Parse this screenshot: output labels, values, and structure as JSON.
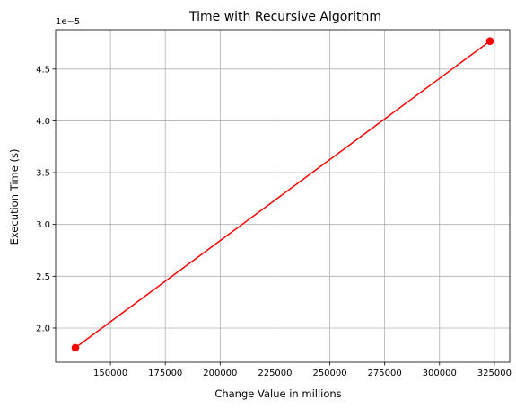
{
  "chart_data": {
    "type": "line",
    "title": "Time with Recursive Algorithm",
    "xlabel": "Change Value in millions",
    "ylabel": "Execution Time (s)",
    "y_offset_label": "1e−5",
    "xlim": [
      125000,
      332000
    ],
    "ylim": [
      1.67,
      4.88
    ],
    "xticks": [
      150000,
      175000,
      200000,
      225000,
      250000,
      275000,
      300000,
      325000
    ],
    "xtick_labels": [
      "150000",
      "175000",
      "200000",
      "225000",
      "250000",
      "275000",
      "300000",
      "325000"
    ],
    "yticks": [
      2.0,
      2.5,
      3.0,
      3.5,
      4.0,
      4.5
    ],
    "ytick_labels": [
      "2.0",
      "2.5",
      "3.0",
      "3.5",
      "4.0",
      "4.5"
    ],
    "grid": true,
    "series": [
      {
        "color": "#ff0000",
        "marker": "circle",
        "points": [
          {
            "x": 134000,
            "y": 1.81
          },
          {
            "x": 323000,
            "y": 4.77
          }
        ]
      }
    ]
  }
}
